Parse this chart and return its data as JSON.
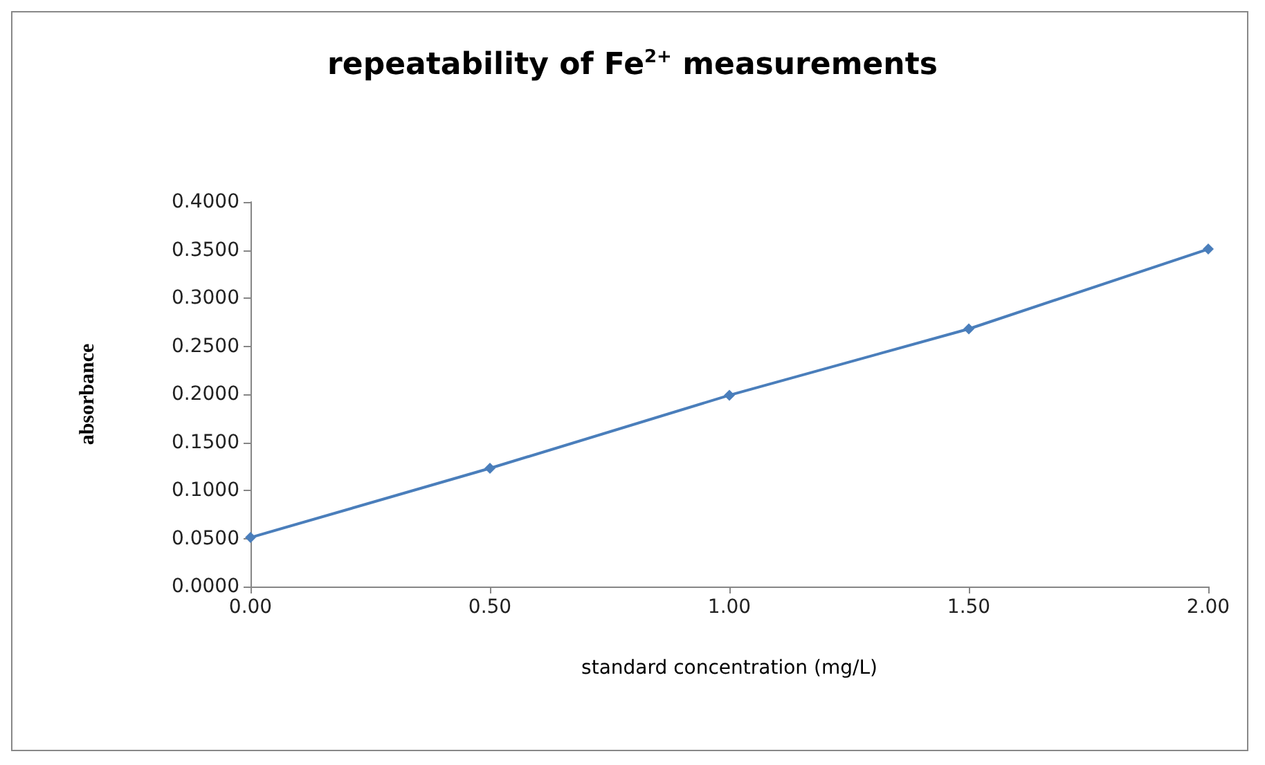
{
  "chart_data": {
    "type": "line",
    "title": "repeatability of  Fe$^{2+}$ measurements",
    "xlabel": "standard concentration (mg/L)",
    "ylabel": "absorbance",
    "x": [
      0,
      0.5,
      1,
      1.5,
      2
    ],
    "series": [
      {
        "color": "#4a7ebb",
        "values": [
          0.051,
          0.123,
          0.199,
          0.268,
          0.351
        ]
      }
    ],
    "xlim": [
      0,
      2
    ],
    "xticks": [
      {
        "value": 0,
        "label": "0.00"
      },
      {
        "value": 0.5,
        "label": "0.50"
      },
      {
        "value": 1,
        "label": "1.00"
      },
      {
        "value": 1.5,
        "label": "1.50"
      },
      {
        "value": 2,
        "label": "2.00"
      }
    ],
    "ylim": [
      0,
      0.4
    ],
    "yticks": [
      {
        "value": 0,
        "label": "0.0000"
      },
      {
        "value": 0.05,
        "label": "0.0500"
      },
      {
        "value": 0.1,
        "label": "0.1000"
      },
      {
        "value": 0.15,
        "label": "0.1500"
      },
      {
        "value": 0.2,
        "label": "0.2000"
      },
      {
        "value": 0.25,
        "label": "0.2500"
      },
      {
        "value": 0.3,
        "label": "0.3000"
      },
      {
        "value": 0.35,
        "label": "0.3500"
      },
      {
        "value": 0.4,
        "label": "0.4000"
      }
    ],
    "grid": false,
    "marker": "diamond",
    "line_style": "solid"
  }
}
